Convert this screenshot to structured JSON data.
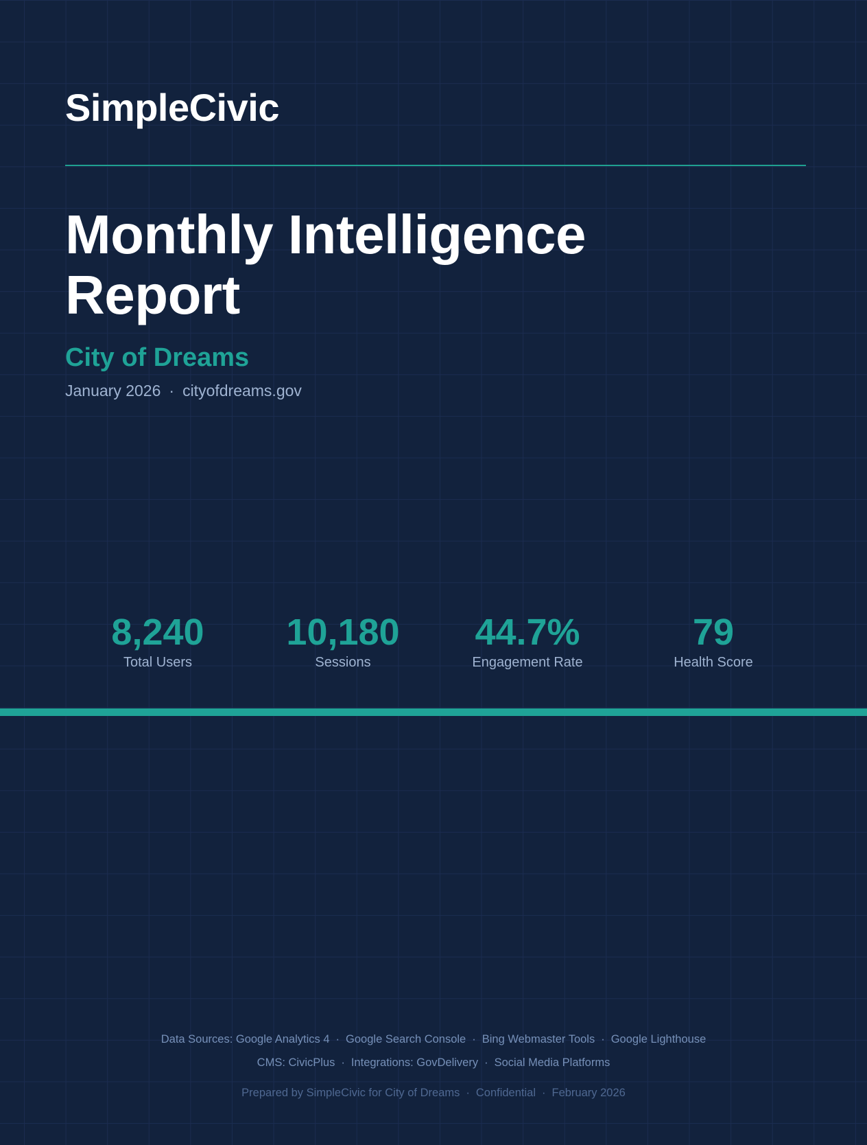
{
  "header": {
    "brand": "SimpleCivic"
  },
  "report": {
    "title": "Monthly Intelligence Report",
    "organization": "City of Dreams",
    "period": "January 2026",
    "domain": "cityofdreams.gov"
  },
  "separator": "·",
  "metrics": [
    {
      "value": "8,240",
      "label": "Total Users"
    },
    {
      "value": "10,180",
      "label": "Sessions"
    },
    {
      "value": "44.7%",
      "label": "Engagement Rate"
    },
    {
      "value": "79",
      "label": "Health Score"
    }
  ],
  "footer": {
    "sources": [
      "Data Sources: Google Analytics 4",
      "Google Search Console",
      "Bing Webmaster Tools",
      "Google Lighthouse"
    ],
    "platforms": [
      "CMS: CivicPlus",
      "Integrations: GovDelivery",
      "Social Media Platforms"
    ],
    "credits": [
      "Prepared by SimpleCivic for City of Dreams",
      "Confidential",
      "February 2026"
    ]
  }
}
